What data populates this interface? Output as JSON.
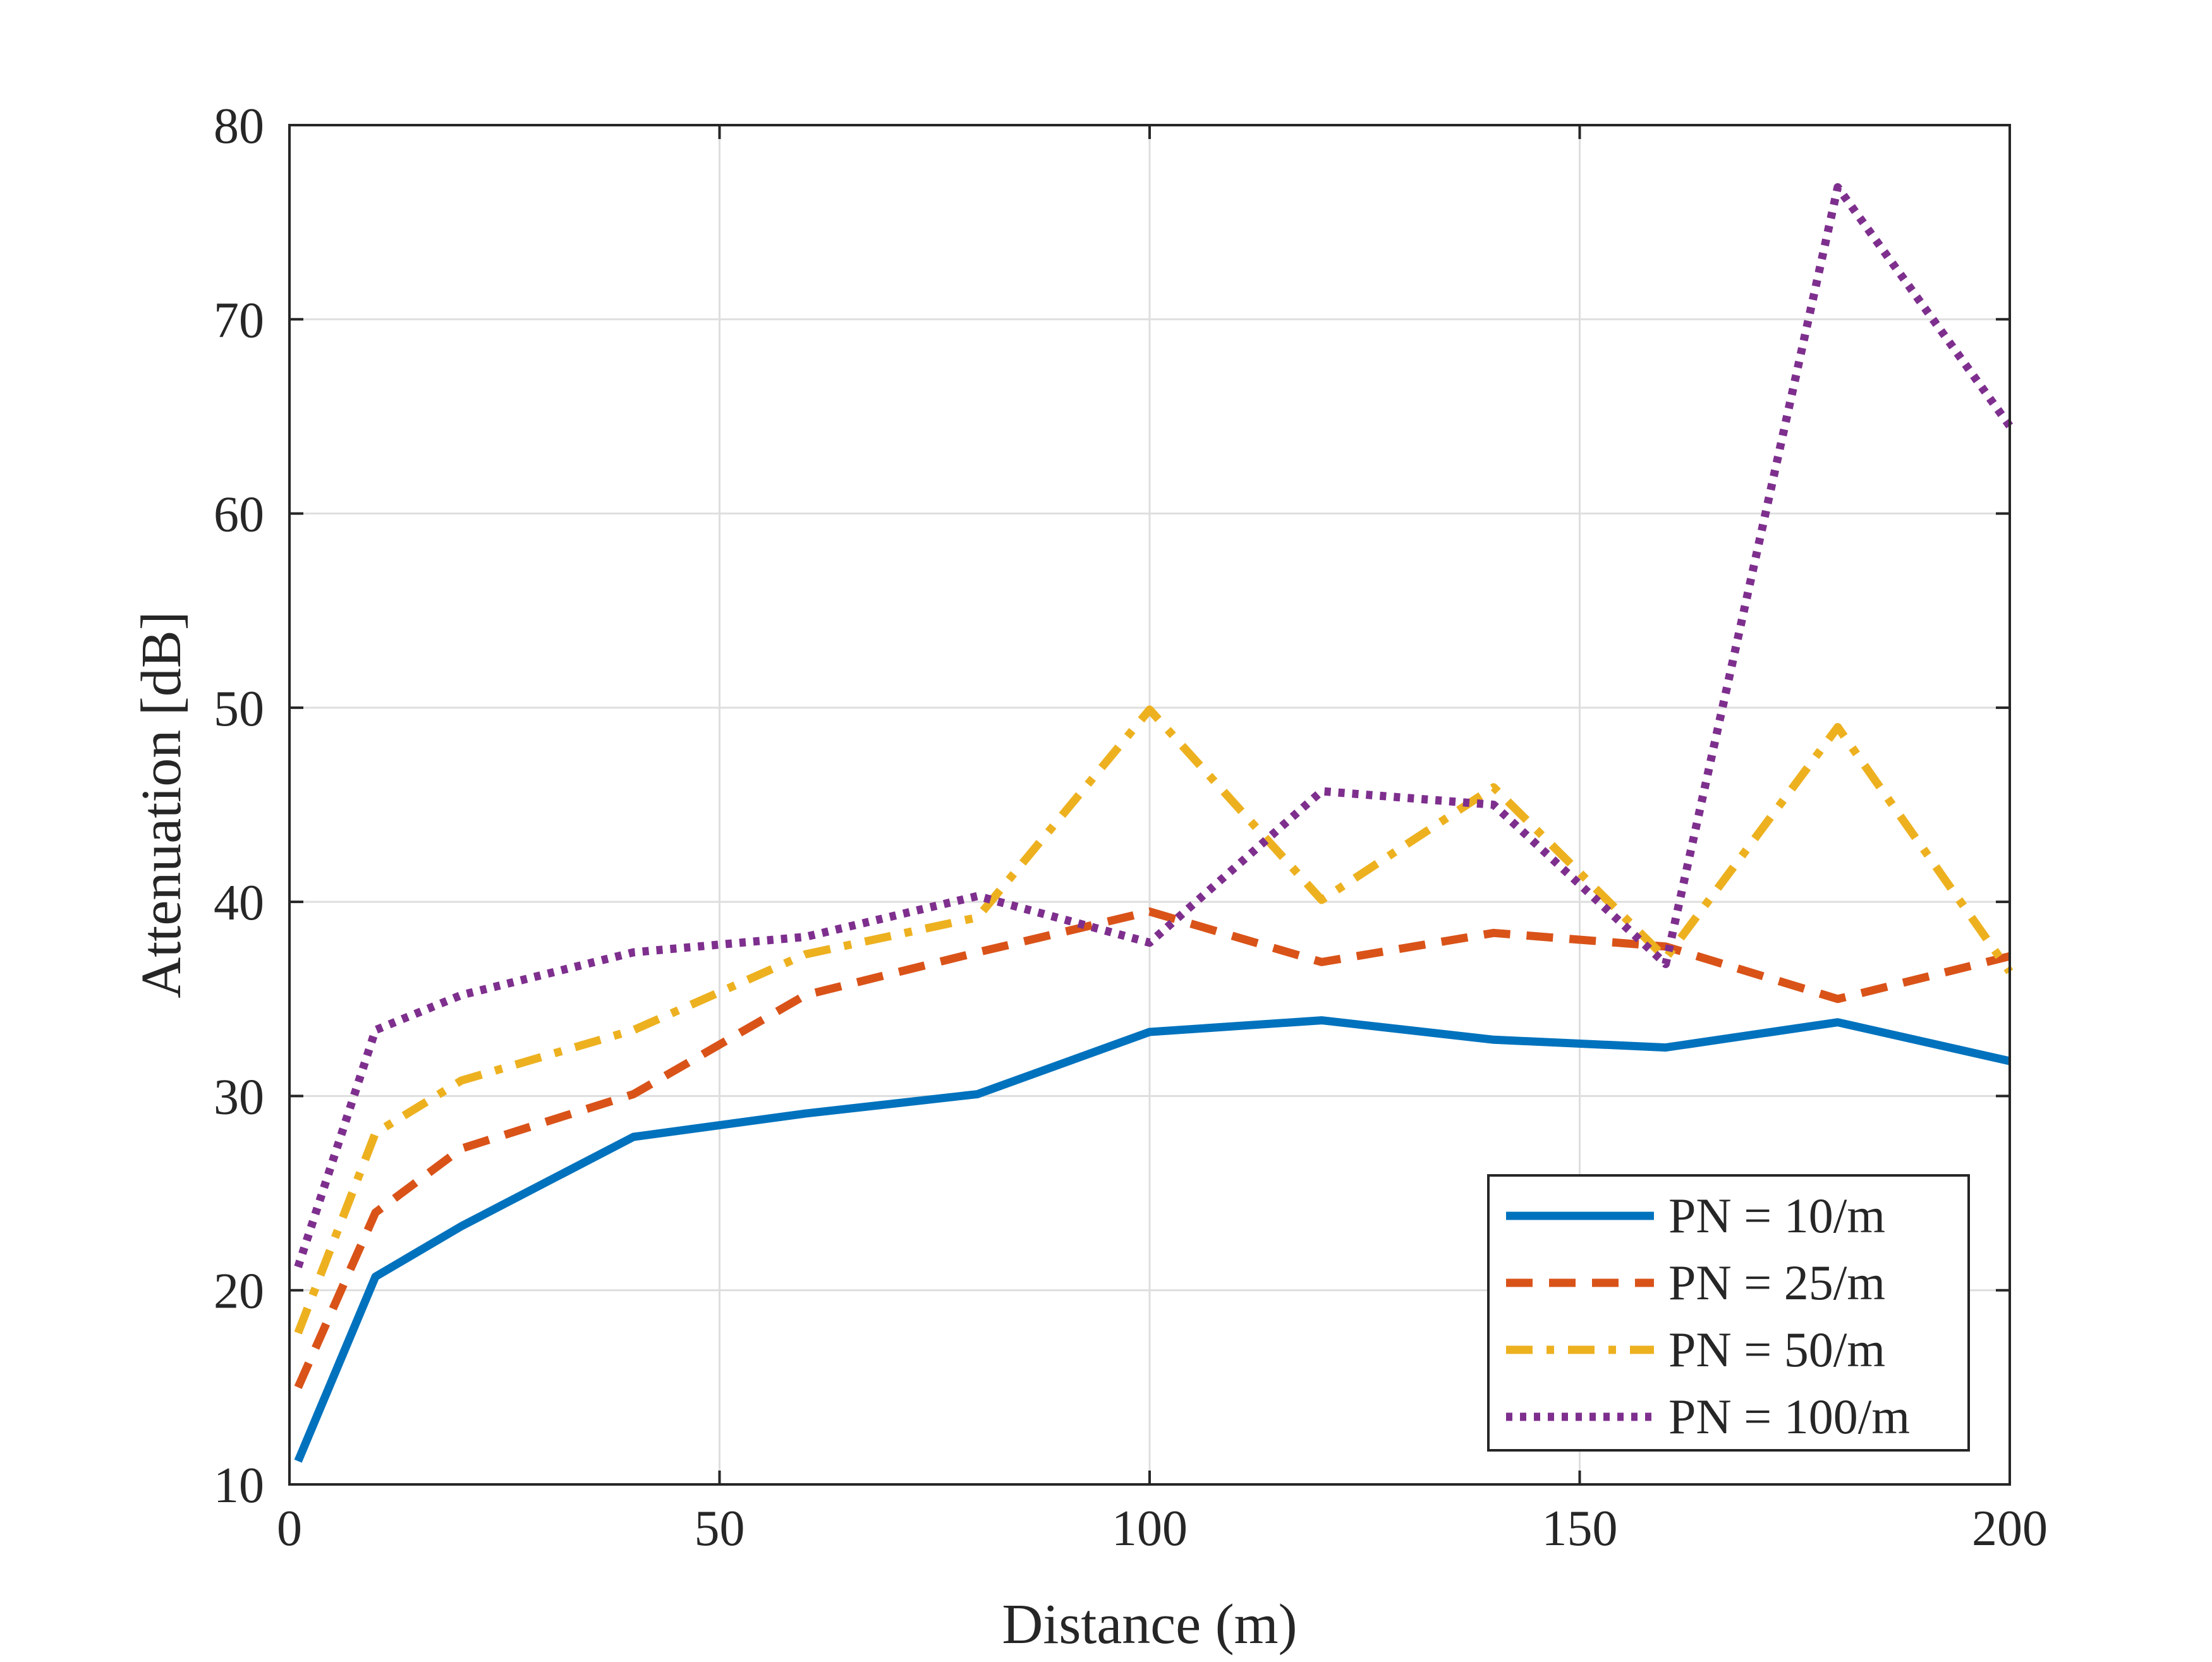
{
  "chart_data": {
    "type": "line",
    "title": "",
    "xlabel": "Distance (m)",
    "ylabel": "Attenuation [dB]",
    "xlim": [
      0,
      200
    ],
    "ylim": [
      10,
      80
    ],
    "xticks": [
      0,
      50,
      100,
      150,
      200
    ],
    "yticks": [
      10,
      20,
      30,
      40,
      50,
      60,
      70,
      80
    ],
    "xtick_labels": [
      "0",
      "50",
      "100",
      "150",
      "200"
    ],
    "ytick_labels": [
      "10",
      "20",
      "30",
      "40",
      "50",
      "60",
      "70",
      "80"
    ],
    "grid": true,
    "legend_position": "bottom-right",
    "series": [
      {
        "name": "PN = 10/m",
        "color": "#0072BD",
        "style": "solid",
        "x": [
          1,
          10,
          20,
          40,
          60,
          80,
          100,
          120,
          140,
          160,
          180,
          200
        ],
        "y": [
          11.2,
          20.7,
          23.3,
          27.9,
          29.1,
          30.1,
          33.3,
          33.9,
          32.9,
          32.5,
          33.8,
          31.8
        ]
      },
      {
        "name": "PN = 25/m",
        "color": "#D95319",
        "style": "dashed",
        "x": [
          1,
          10,
          20,
          40,
          60,
          80,
          100,
          120,
          140,
          160,
          180,
          200
        ],
        "y": [
          15.0,
          24.0,
          27.3,
          30.1,
          35.2,
          37.4,
          39.5,
          36.9,
          38.4,
          37.7,
          35.0,
          37.2
        ]
      },
      {
        "name": "PN = 50/m",
        "color": "#EDB120",
        "style": "dashdot",
        "x": [
          1,
          10,
          20,
          40,
          60,
          80,
          100,
          120,
          140,
          160,
          180,
          200
        ],
        "y": [
          17.8,
          28.1,
          30.8,
          33.4,
          37.3,
          39.2,
          49.9,
          40.1,
          45.9,
          37.1,
          49.0,
          36.4
        ]
      },
      {
        "name": "PN = 100/m",
        "color": "#7E2F8E",
        "style": "dotted",
        "x": [
          1,
          10,
          20,
          40,
          60,
          80,
          100,
          120,
          140,
          160,
          180,
          200
        ],
        "y": [
          21.2,
          33.4,
          35.2,
          37.4,
          38.2,
          40.3,
          37.9,
          45.7,
          45.0,
          36.8,
          76.8,
          64.5
        ]
      }
    ]
  }
}
